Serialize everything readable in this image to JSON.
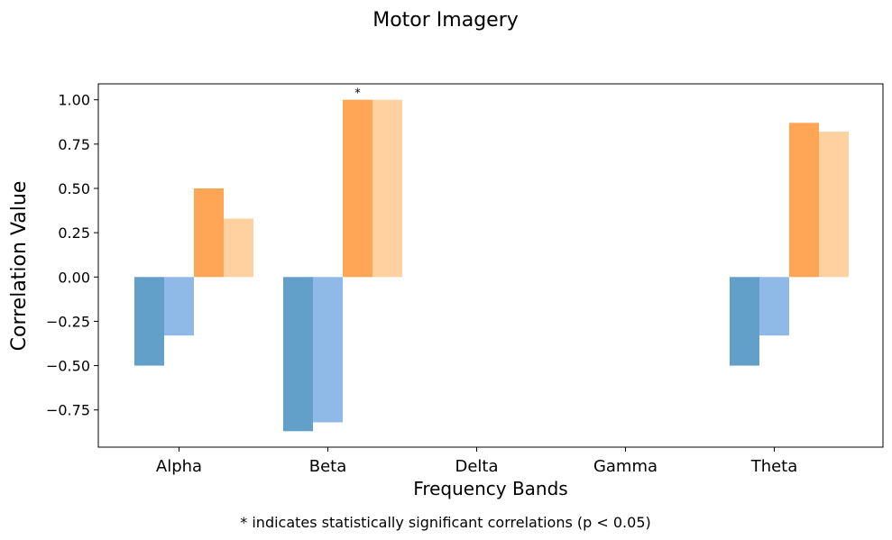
{
  "chart_data": {
    "type": "bar",
    "title": "Motor Imagery",
    "xlabel": "Frequency Bands",
    "ylabel": "Correlation Value",
    "categories": [
      "Alpha",
      "Beta",
      "Delta",
      "Gamma",
      "Theta"
    ],
    "series": [
      {
        "color": "#1f77b4",
        "opacity": 0.7,
        "values": [
          -0.5,
          -0.87,
          null,
          null,
          -0.5
        ]
      },
      {
        "color": "#4a90d9",
        "opacity": 0.62,
        "values": [
          -0.33,
          -0.82,
          null,
          null,
          -0.33
        ]
      },
      {
        "color": "#ff7f0e",
        "opacity": 0.7,
        "values": [
          0.5,
          1.0,
          null,
          null,
          0.87
        ]
      },
      {
        "color": "#ffb366",
        "opacity": 0.62,
        "values": [
          0.33,
          1.0,
          null,
          null,
          0.82
        ]
      }
    ],
    "yticks": [
      "−0.75",
      "−0.50",
      "−0.25",
      "0.00",
      "0.25",
      "0.50",
      "0.75",
      "1.00"
    ],
    "ytick_values": [
      -0.75,
      -0.5,
      -0.25,
      0.0,
      0.25,
      0.5,
      0.75,
      1.0
    ],
    "ylim": [
      -0.96,
      1.09
    ],
    "annotations": [
      {
        "text": "*",
        "category": "Beta",
        "series_index": 2
      }
    ],
    "grid": false,
    "footnote": "* indicates statistically significant correlations (p < 0.05)"
  }
}
